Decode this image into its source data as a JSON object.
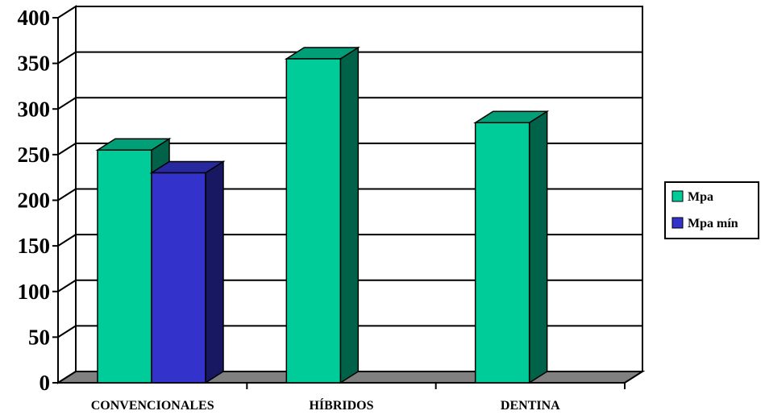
{
  "chart_data": {
    "type": "bar",
    "categories": [
      "CONVENCIONALES",
      "HÍBRIDOS",
      "DENTINA"
    ],
    "series": [
      {
        "name": "Mpa",
        "values": [
          255,
          355,
          285
        ],
        "color": "#00cc99"
      },
      {
        "name": "Mpa mín",
        "values": [
          230,
          null,
          null
        ],
        "color": "#3333cc"
      }
    ],
    "ylim": [
      0,
      400
    ],
    "yticks": [
      "0",
      "50",
      "100",
      "150",
      "200",
      "250",
      "300",
      "350",
      "400"
    ],
    "grid": true,
    "legend": "right",
    "floor_color": "#808080"
  }
}
